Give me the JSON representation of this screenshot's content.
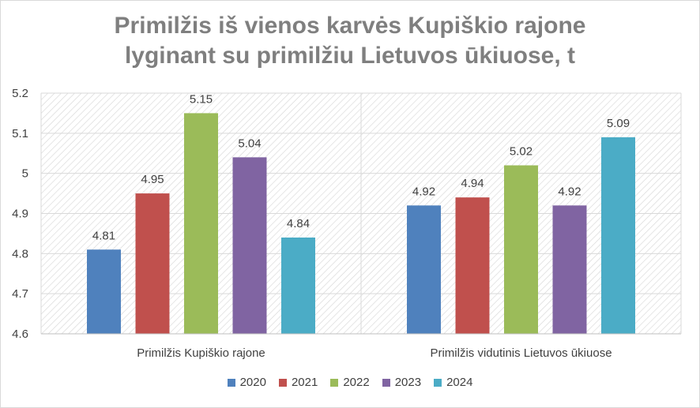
{
  "chart_data": {
    "type": "bar",
    "title": "Primilžis iš vienos karvės Kupiškio rajone lyginant su primilžiu Lietuvos ūkiuose, t",
    "title_lines": [
      "Primilžis iš vienos karvės Kupiškio rajone",
      "lyginant su primilžiu Lietuvos ūkiuose, t"
    ],
    "categories": [
      "Primilžis Kupiškio rajone",
      "Primilžis vidutinis Lietuvos ūkiuose"
    ],
    "series": [
      {
        "name": "2020",
        "color": "#4f81bd",
        "values": [
          4.81,
          4.92
        ]
      },
      {
        "name": "2021",
        "color": "#c0504d",
        "values": [
          4.95,
          4.94
        ]
      },
      {
        "name": "2022",
        "color": "#9bbb59",
        "values": [
          5.15,
          5.02
        ]
      },
      {
        "name": "2023",
        "color": "#8064a2",
        "values": [
          5.04,
          4.92
        ]
      },
      {
        "name": "2024",
        "color": "#4bacc6",
        "values": [
          4.84,
          5.09
        ]
      }
    ],
    "ylim": [
      4.6,
      5.2
    ],
    "yticks": [
      "4.6",
      "4.7",
      "4.8",
      "4.9",
      "5",
      "5.1",
      "5.2"
    ],
    "xlabel": "",
    "ylabel": "",
    "grid": true,
    "legend": "bottom"
  }
}
